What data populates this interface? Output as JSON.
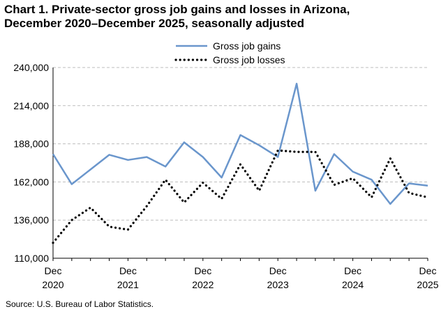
{
  "chart_data": {
    "type": "line",
    "title_line1": "Chart 1. Private-sector gross job gains and losses in Arizona,",
    "title_line2": "December 2020–December 2025, seasonally adjusted",
    "source": "Source: U.S. Bureau of Labor Statistics.",
    "ylim": [
      110000,
      240000
    ],
    "y_ticks": [
      {
        "value": 110000,
        "label": "110,000"
      },
      {
        "value": 136000,
        "label": "136,000"
      },
      {
        "value": 162000,
        "label": "162,000"
      },
      {
        "value": 188000,
        "label": "188,000"
      },
      {
        "value": 214000,
        "label": "214,000"
      },
      {
        "value": 240000,
        "label": "240,000"
      }
    ],
    "x_ticks": [
      {
        "index": 0,
        "line1": "Dec",
        "line2": "2020"
      },
      {
        "index": 4,
        "line1": "Dec",
        "line2": "2021"
      },
      {
        "index": 8,
        "line1": "Dec",
        "line2": "2022"
      },
      {
        "index": 12,
        "line1": "Dec",
        "line2": "2023"
      },
      {
        "index": 16,
        "line1": "Dec",
        "line2": "2024"
      },
      {
        "index": 20,
        "line1": "Dec",
        "line2": "2025"
      }
    ],
    "x": [
      "Dec 2020",
      "Mar 2021",
      "Jun 2021",
      "Sep 2021",
      "Dec 2021",
      "Mar 2022",
      "Jun 2022",
      "Sep 2022",
      "Dec 2022",
      "Mar 2023",
      "Jun 2023",
      "Sep 2023",
      "Dec 2023",
      "Mar 2024",
      "Jun 2024",
      "Sep 2024",
      "Dec 2024",
      "Mar 2025",
      "Jun 2025",
      "Sep 2025",
      "Dec 2025"
    ],
    "grid": "horizontal dashed",
    "legend_placement": "top-center",
    "series": [
      {
        "name": "Gross job gains",
        "color": "#6a96cc",
        "style": "solid",
        "values": [
          181000,
          160500,
          170500,
          180500,
          177000,
          179000,
          172500,
          189000,
          179000,
          165000,
          194000,
          187000,
          179000,
          229000,
          156000,
          181000,
          169000,
          163500,
          147000,
          161000,
          159500
        ]
      },
      {
        "name": "Gross job losses",
        "color": "#000000",
        "style": "dotted",
        "values": [
          120500,
          136000,
          144500,
          131500,
          129500,
          145500,
          163500,
          148000,
          161500,
          150500,
          174000,
          156000,
          183500,
          182500,
          182500,
          160000,
          164500,
          151500,
          178000,
          154500,
          151500
        ]
      }
    ]
  }
}
